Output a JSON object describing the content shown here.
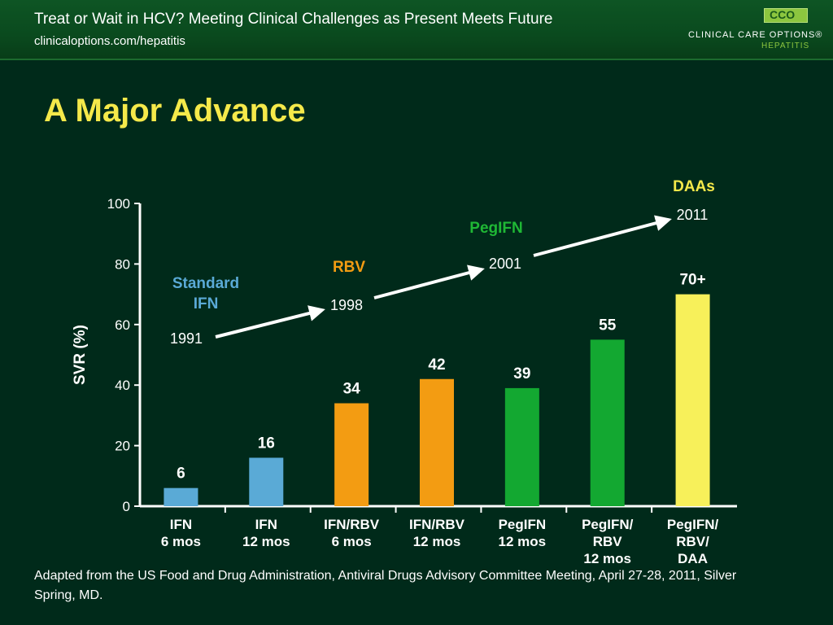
{
  "header": {
    "title": "Treat or Wait in HCV? Meeting Clinical Challenges as Present Meets Future",
    "url": "clinicaloptions.com/hepatitis",
    "logo_mark": "CCO",
    "logo_name": "CLINICAL CARE OPTIONS®",
    "logo_sub": "HEPATITIS"
  },
  "slide": {
    "title": "A Major Advance",
    "footnote": "Adapted from the US Food and Drug Administration, Antiviral Drugs Advisory Committee Meeting, April 27-28, 2011, Silver Spring, MD."
  },
  "chart_data": {
    "type": "bar",
    "ylabel": "SVR (%)",
    "ylim": [
      0,
      100
    ],
    "yticks": [
      0,
      20,
      40,
      60,
      80,
      100
    ],
    "categories": [
      [
        "IFN",
        "6 mos"
      ],
      [
        "IFN",
        "12 mos"
      ],
      [
        "IFN/RBV",
        "6 mos"
      ],
      [
        "IFN/RBV",
        "12 mos"
      ],
      [
        "PegIFN",
        "12 mos"
      ],
      [
        "PegIFN/",
        "RBV",
        "12 mos"
      ],
      [
        "PegIFN/",
        "RBV/",
        "DAA"
      ]
    ],
    "values": [
      6,
      16,
      34,
      42,
      39,
      55,
      70
    ],
    "value_labels": [
      "6",
      "16",
      "34",
      "42",
      "39",
      "55",
      "70+"
    ],
    "bar_colors": [
      "#5aaad6",
      "#5aaad6",
      "#f39c12",
      "#f39c12",
      "#13a831",
      "#13a831",
      "#f7f05a"
    ],
    "timeline": [
      {
        "label": [
          "Standard",
          "IFN"
        ],
        "year": "1991",
        "color": "#5aaad6"
      },
      {
        "label": [
          "RBV"
        ],
        "year": "1998",
        "color": "#f39c12"
      },
      {
        "label": [
          "PegIFN"
        ],
        "year": "2001",
        "color": "#1fb835"
      },
      {
        "label": [
          "DAAs"
        ],
        "year": "2011",
        "color": "#f5e94a"
      }
    ]
  }
}
